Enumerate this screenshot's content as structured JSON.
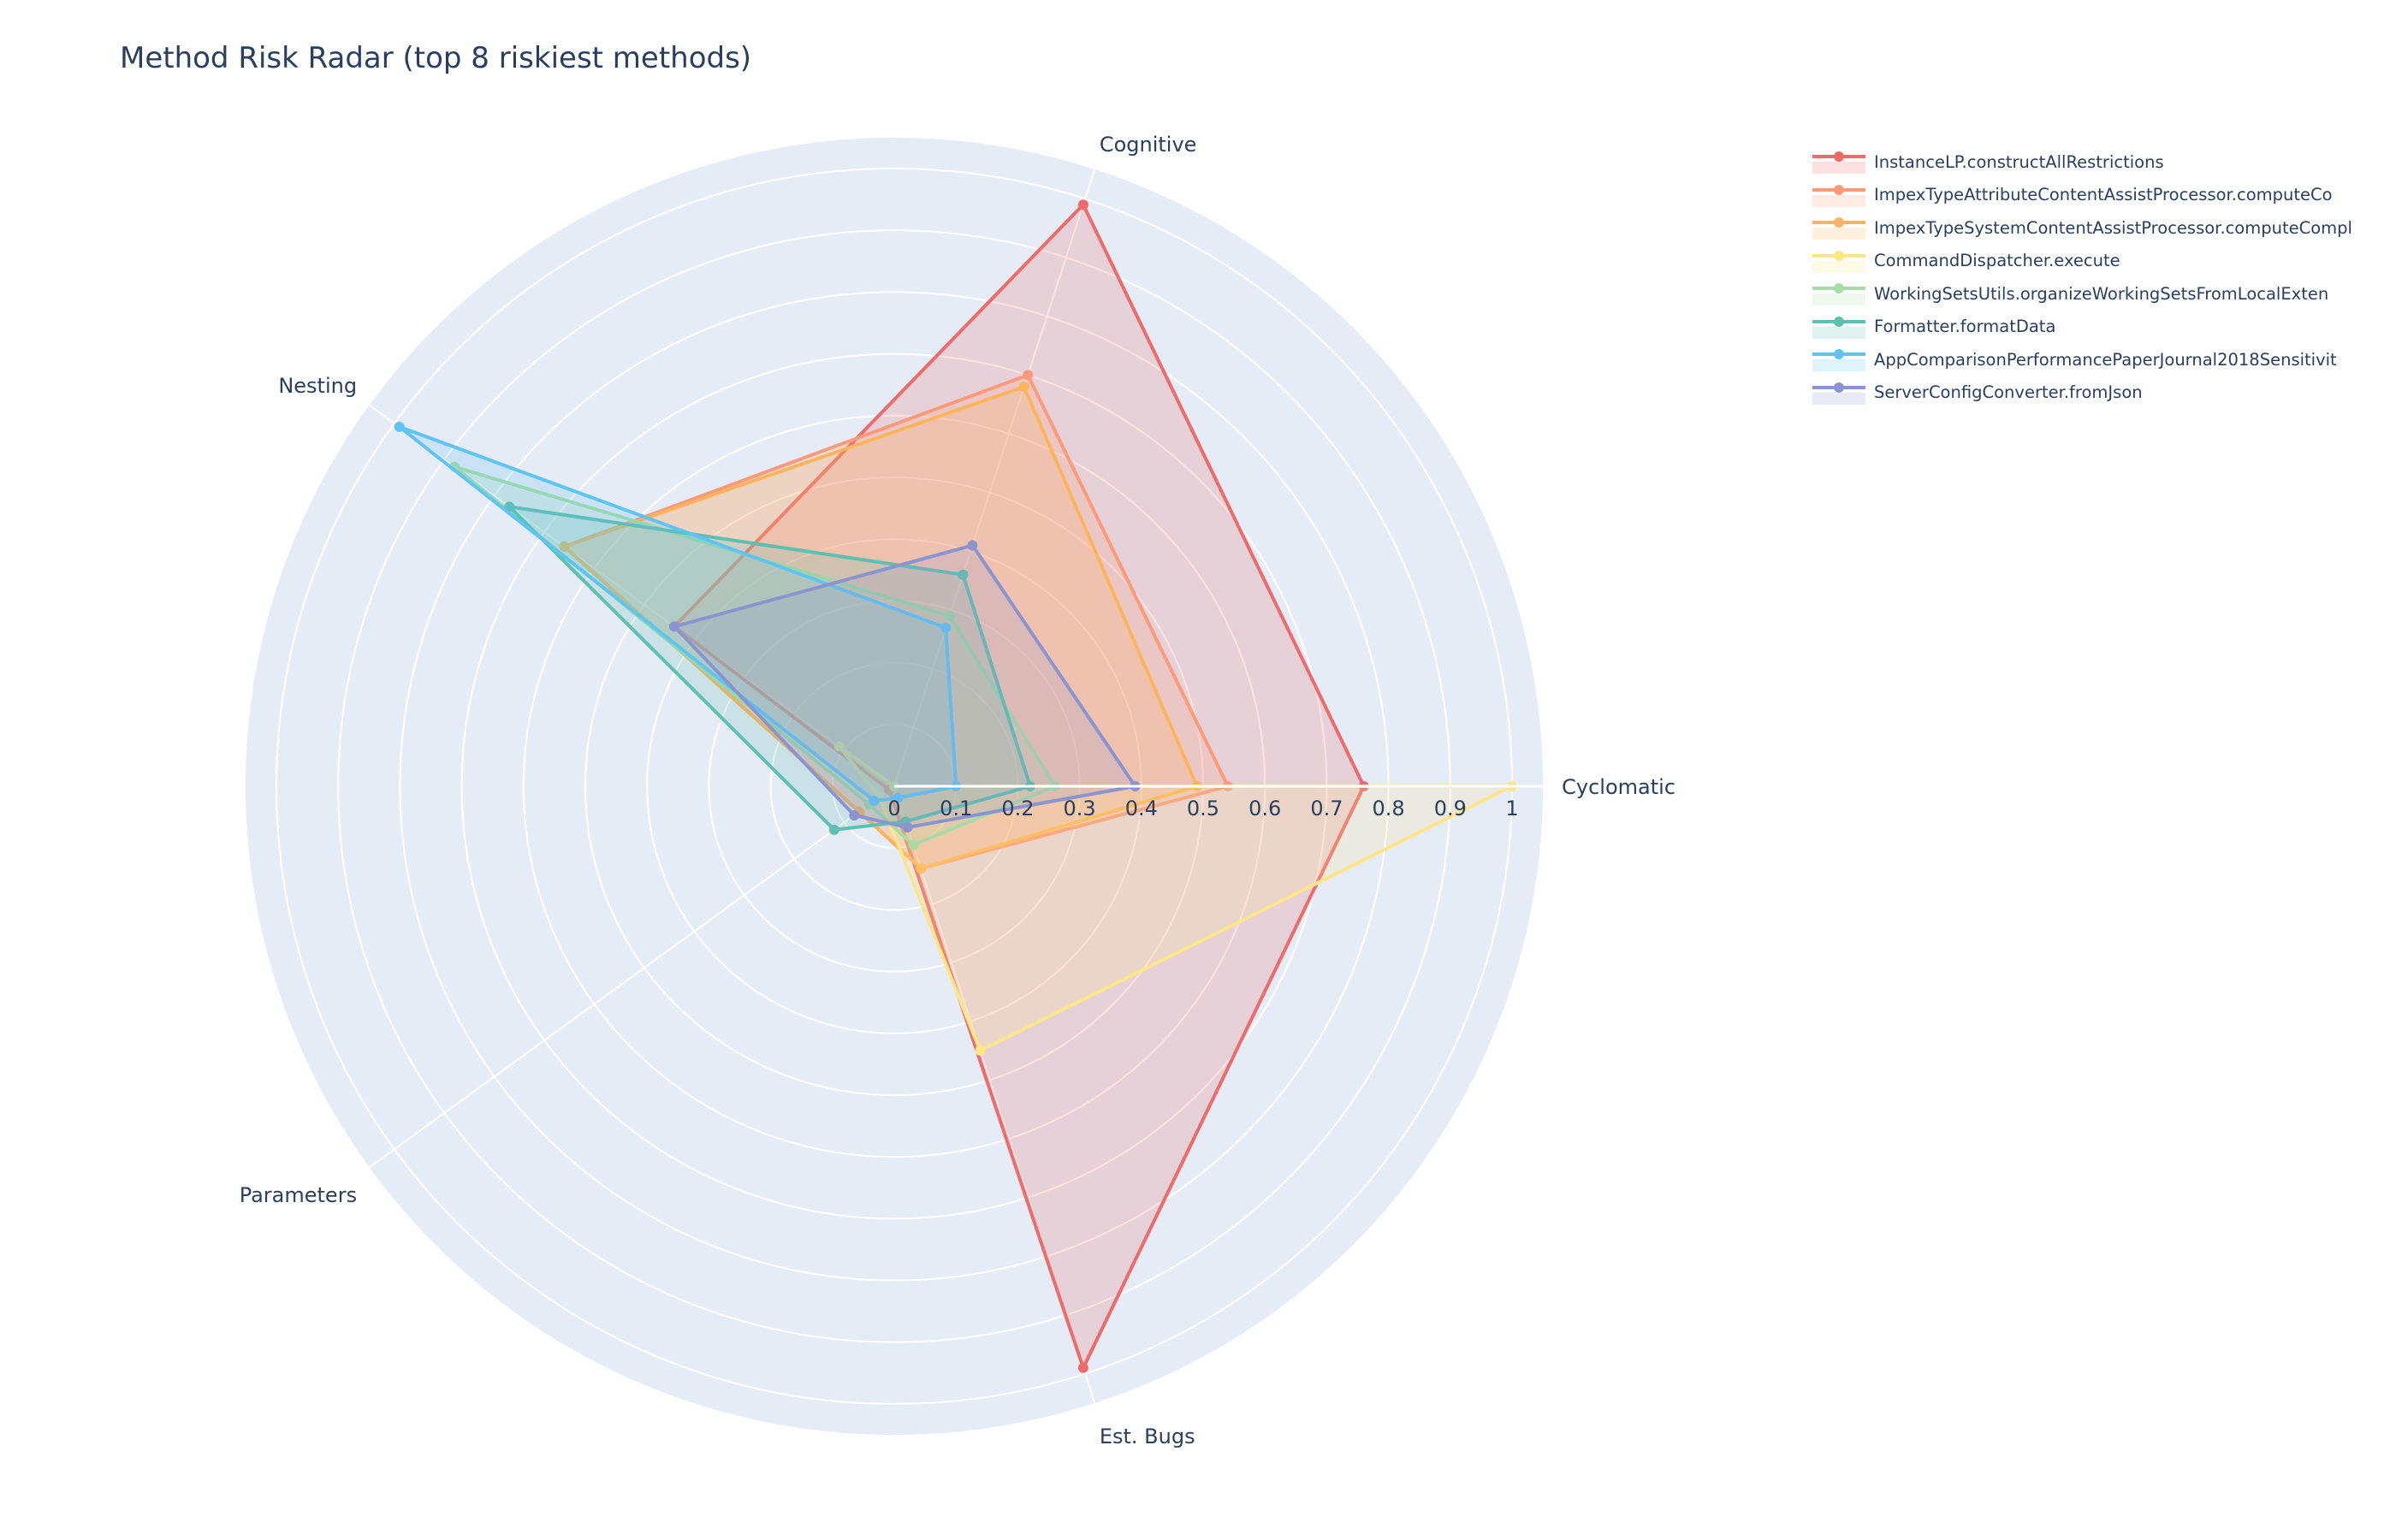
{
  "chart_data": {
    "type": "radar",
    "title": "Method Risk Radar (top 8 riskiest methods)",
    "axes": [
      "Cyclomatic",
      "Cognitive",
      "Nesting",
      "Parameters",
      "Est. Bugs"
    ],
    "radial_range": [
      0,
      1.05
    ],
    "radial_ticks": [
      "0",
      "0.1",
      "0.2",
      "0.3",
      "0.4",
      "0.5",
      "0.6",
      "0.7",
      "0.8",
      "0.9",
      "1"
    ],
    "legend_position": "top-right",
    "series": [
      {
        "name": "InstanceLP.constructAllRestrictions",
        "color": "#ef6b6b",
        "values": [
          0.76,
          0.99,
          0.44,
          0.01,
          0.99
        ]
      },
      {
        "name": "ImpexTypeAttributeContentAssistProcessor.computeCo",
        "color": "#fc9a7a",
        "values": [
          0.54,
          0.7,
          0.66,
          0.07,
          0.14
        ]
      },
      {
        "name": "ImpexTypeSystemContentAssistProcessor.computeCompl",
        "color": "#fdb45c",
        "values": [
          0.49,
          0.68,
          0.66,
          0.07,
          0.14
        ]
      },
      {
        "name": "CommandDispatcher.execute",
        "color": "#fde58a",
        "values": [
          1.0,
          0.0,
          0.11,
          0.03,
          0.45
        ]
      },
      {
        "name": "WorkingSetsUtils.organizeWorkingSetsFromLocalExten",
        "color": "#a8dba8",
        "values": [
          0.26,
          0.29,
          0.88,
          0.05,
          0.1
        ]
      },
      {
        "name": "Formatter.formatData",
        "color": "#5fbfb0",
        "values": [
          0.22,
          0.36,
          0.77,
          0.12,
          0.06
        ]
      },
      {
        "name": "AppComparisonPerformancePaperJournal2018Sensitivit",
        "color": "#5ec4f2",
        "values": [
          0.1,
          0.27,
          0.99,
          0.04,
          0.02
        ]
      },
      {
        "name": "ServerConfigConverter.fromJson",
        "color": "#8c94d0",
        "values": [
          0.39,
          0.41,
          0.44,
          0.08,
          0.07
        ]
      }
    ]
  }
}
